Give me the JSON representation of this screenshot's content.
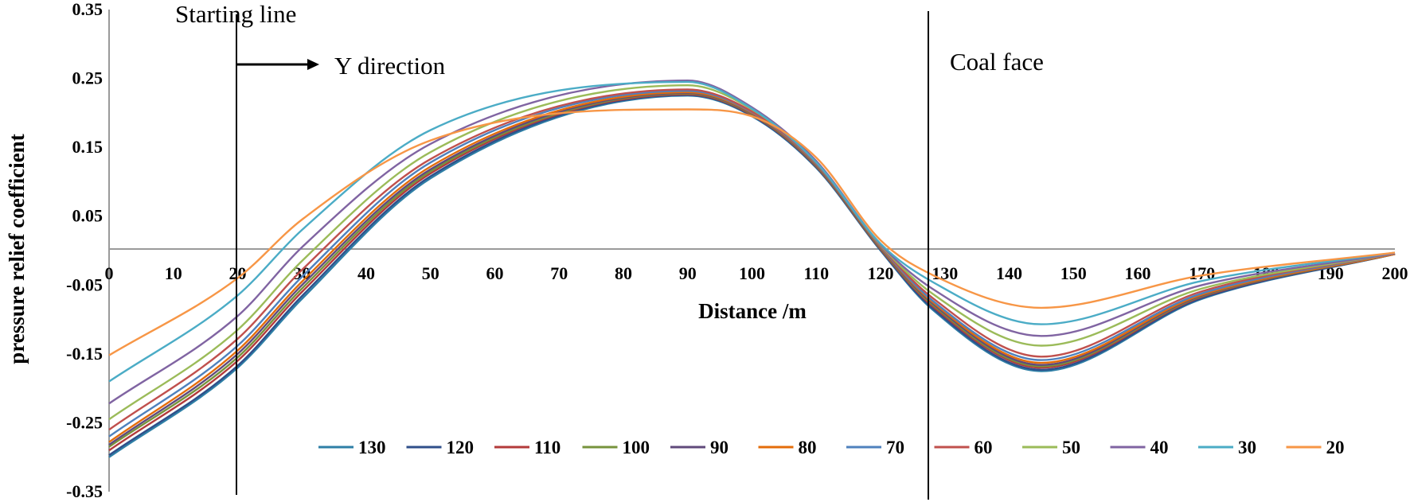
{
  "chart_data": {
    "type": "line",
    "title": "",
    "xlabel": "Distance /m",
    "ylabel": "pressure relief coefficient",
    "xlim": [
      0,
      200
    ],
    "ylim": [
      -0.35,
      0.35
    ],
    "x_ticks": [
      "0",
      "10",
      "20",
      "30",
      "40",
      "50",
      "60",
      "70",
      "80",
      "90",
      "100",
      "110",
      "120",
      "130",
      "140",
      "150",
      "160",
      "170",
      "180",
      "190",
      "200"
    ],
    "y_ticks": [
      "0.35",
      "0.25",
      "0.15",
      "0.05",
      "-0.05",
      "-0.15",
      "-0.25",
      "-0.35"
    ],
    "grid": false,
    "legend_position": "bottom",
    "annotations": {
      "starting_line": {
        "label": "Starting line",
        "x": 20
      },
      "y_direction": {
        "label": "Y direction"
      },
      "coal_face": {
        "label": "Coal face",
        "x": 128
      }
    },
    "x": [
      0,
      20,
      30,
      50,
      90,
      100,
      110,
      120,
      128,
      145,
      170,
      200
    ],
    "series": [
      {
        "name": "130",
        "color": "#2E7FA6",
        "values": [
          -0.3,
          -0.17,
          -0.07,
          0.105,
          0.225,
          0.195,
          0.12,
          0.0,
          -0.085,
          -0.175,
          -0.07,
          -0.005
        ]
      },
      {
        "name": "120",
        "color": "#2F4F8A",
        "values": [
          -0.297,
          -0.167,
          -0.066,
          0.108,
          0.226,
          0.196,
          0.121,
          0.001,
          -0.083,
          -0.173,
          -0.069,
          -0.005
        ]
      },
      {
        "name": "110",
        "color": "#B33A3A",
        "values": [
          -0.29,
          -0.16,
          -0.06,
          0.112,
          0.227,
          0.197,
          0.122,
          0.002,
          -0.08,
          -0.17,
          -0.067,
          -0.005
        ]
      },
      {
        "name": "100",
        "color": "#77933C",
        "values": [
          -0.285,
          -0.155,
          -0.055,
          0.115,
          0.228,
          0.198,
          0.123,
          0.003,
          -0.078,
          -0.168,
          -0.066,
          -0.005
        ]
      },
      {
        "name": "90",
        "color": "#604A7B",
        "values": [
          -0.282,
          -0.15,
          -0.05,
          0.118,
          0.229,
          0.199,
          0.124,
          0.004,
          -0.076,
          -0.166,
          -0.065,
          -0.005
        ]
      },
      {
        "name": "80",
        "color": "#E46C0A",
        "values": [
          -0.278,
          -0.145,
          -0.045,
          0.122,
          0.23,
          0.2,
          0.125,
          0.005,
          -0.074,
          -0.163,
          -0.064,
          -0.005
        ]
      },
      {
        "name": "70",
        "color": "#4F81BD",
        "values": [
          -0.27,
          -0.138,
          -0.038,
          0.128,
          0.232,
          0.201,
          0.126,
          0.006,
          -0.072,
          -0.159,
          -0.062,
          -0.004
        ]
      },
      {
        "name": "60",
        "color": "#C0504D",
        "values": [
          -0.26,
          -0.128,
          -0.028,
          0.133,
          0.234,
          0.202,
          0.127,
          0.007,
          -0.068,
          -0.154,
          -0.059,
          -0.004
        ]
      },
      {
        "name": "50",
        "color": "#9BBB59",
        "values": [
          -0.245,
          -0.115,
          -0.015,
          0.143,
          0.24,
          0.205,
          0.128,
          0.008,
          -0.062,
          -0.138,
          -0.055,
          -0.004
        ]
      },
      {
        "name": "40",
        "color": "#8064A2",
        "values": [
          -0.222,
          -0.095,
          0.005,
          0.155,
          0.247,
          0.208,
          0.13,
          0.009,
          -0.055,
          -0.124,
          -0.05,
          -0.004
        ]
      },
      {
        "name": "30",
        "color": "#4BACC6",
        "values": [
          -0.19,
          -0.065,
          0.03,
          0.175,
          0.245,
          0.206,
          0.128,
          0.01,
          -0.045,
          -0.107,
          -0.044,
          -0.003
        ]
      },
      {
        "name": "20",
        "color": "#F79646",
        "values": [
          -0.152,
          -0.04,
          0.045,
          0.16,
          0.205,
          0.195,
          0.135,
          0.015,
          -0.035,
          -0.083,
          -0.036,
          -0.003
        ]
      }
    ]
  }
}
